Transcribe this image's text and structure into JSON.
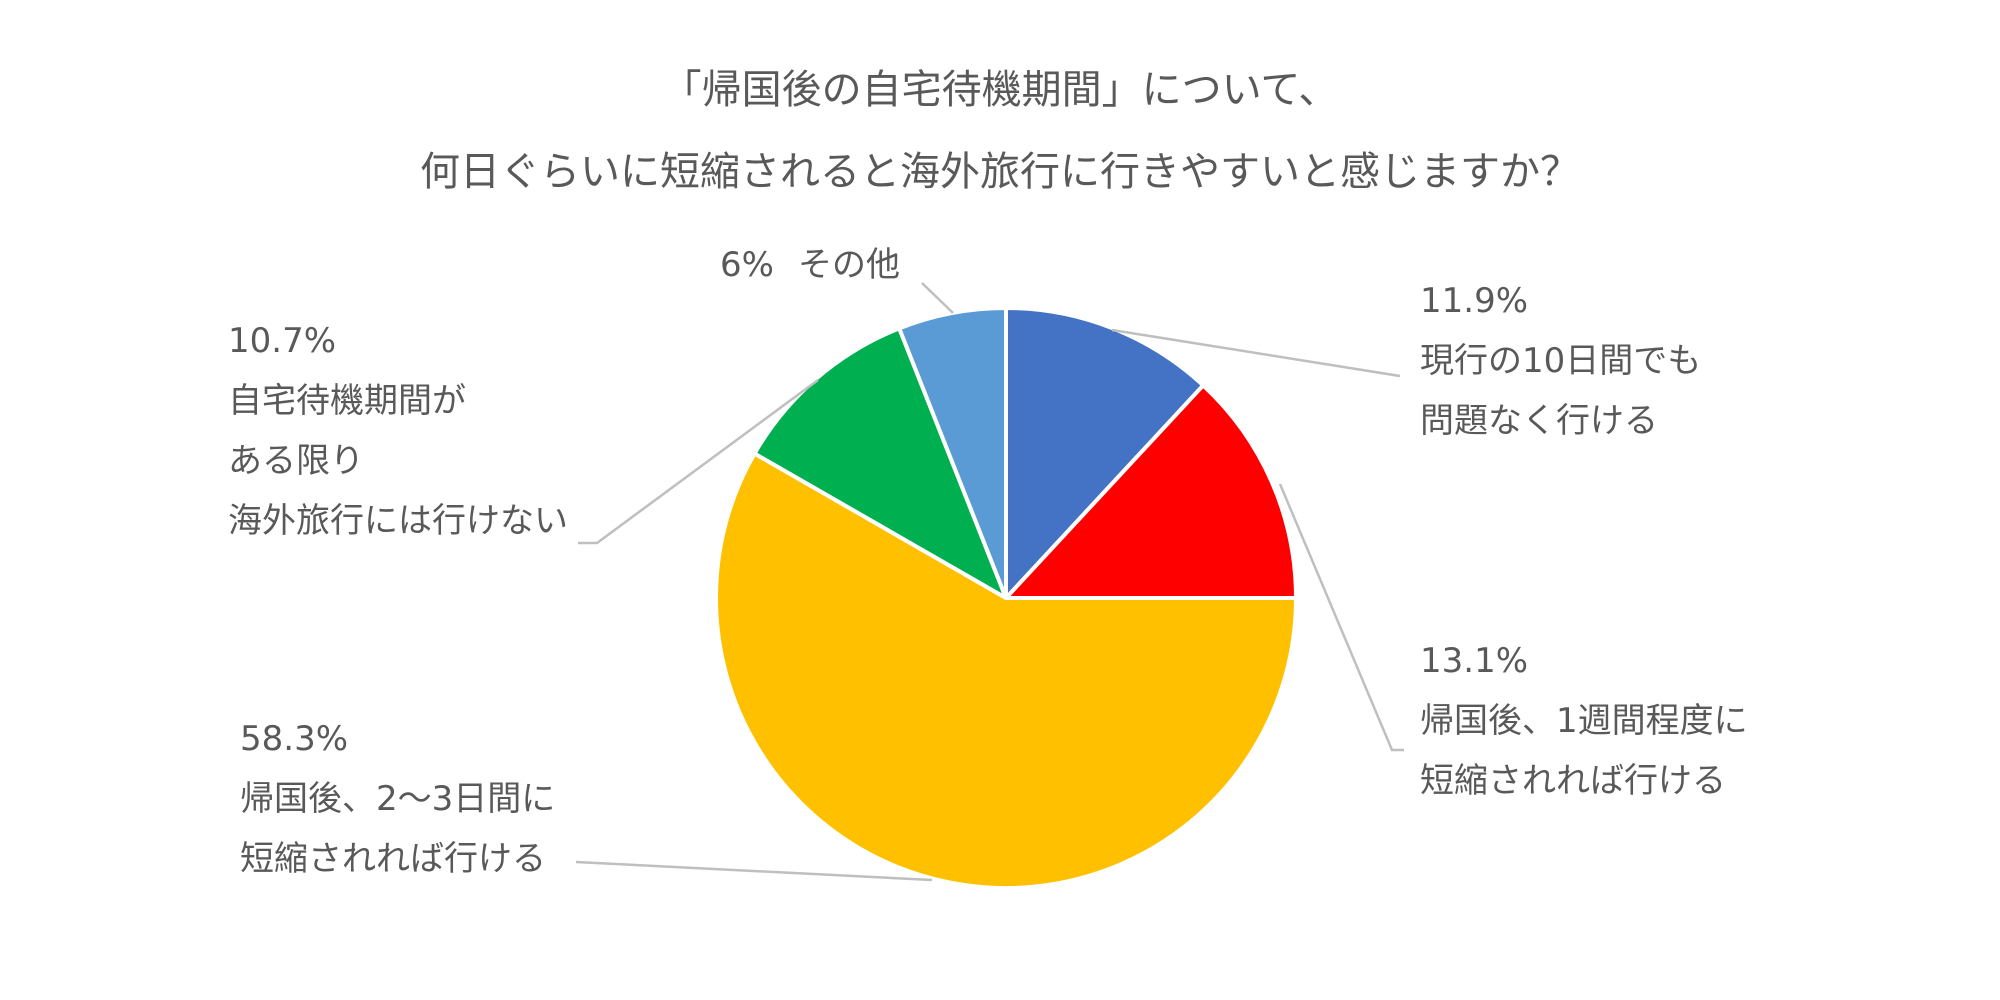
{
  "chart_data": {
    "type": "pie",
    "title": [
      "「帰国後の自宅待機期間」について、",
      "何日ぐらいに短縮されると海外旅行に行きやすいと感じますか？"
    ],
    "legend": "none",
    "slices": [
      {
        "label_lines": [
          "現行の10日間でも",
          "問題なく行ける"
        ],
        "value": 11.9,
        "value_label": "11.9%",
        "color": "#4472c4"
      },
      {
        "label_lines": [
          "帰国後、1週間程度に",
          "短縮されれば行ける"
        ],
        "value": 13.1,
        "value_label": "13.1%",
        "color": "#ff0000"
      },
      {
        "label_lines": [
          "帰国後、2〜3日間に",
          "短縮されれば行ける"
        ],
        "value": 58.3,
        "value_label": "58.3%",
        "color": "#ffc000"
      },
      {
        "label_lines": [
          "自宅待機期間が",
          "ある限り",
          "海外旅行には行けない"
        ],
        "value": 10.7,
        "value_label": "10.7%",
        "color": "#00b050"
      },
      {
        "label_lines": [
          "その他"
        ],
        "value": 6.0,
        "value_label": "6%",
        "color": "#5b9bd5"
      }
    ]
  }
}
